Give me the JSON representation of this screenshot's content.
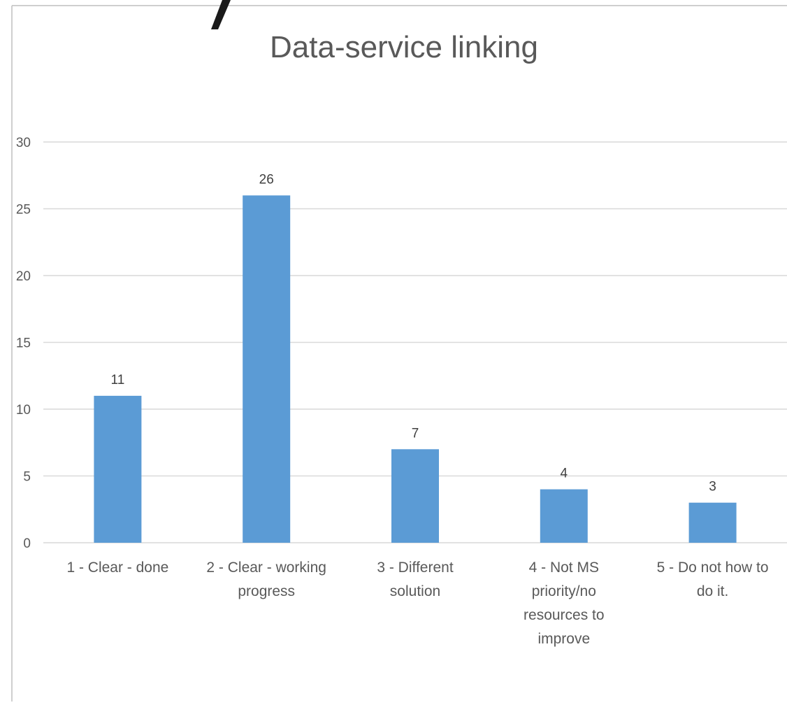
{
  "chart_data": {
    "type": "bar",
    "title": "Data-service linking",
    "categories": [
      [
        "1 - Clear - done"
      ],
      [
        "2 - Clear - working",
        "progress"
      ],
      [
        "3 - Different",
        "solution"
      ],
      [
        "4 - Not MS",
        "priority/no",
        "resources to",
        "improve"
      ],
      [
        "5 - Do not how to",
        "do it."
      ]
    ],
    "values": [
      11,
      26,
      7,
      4,
      3
    ],
    "data_labels": [
      "11",
      "26",
      "7",
      "4",
      "3"
    ],
    "y_ticks": [
      0,
      5,
      10,
      15,
      20,
      25,
      30
    ],
    "ylim": [
      0,
      30
    ],
    "xlabel": "",
    "ylabel": "",
    "grid": true,
    "legend": "none",
    "colors": {
      "bar": "#5b9bd5",
      "grid": "#d9d9d9",
      "text": "#595959",
      "frame": "#bfbfbf"
    }
  }
}
